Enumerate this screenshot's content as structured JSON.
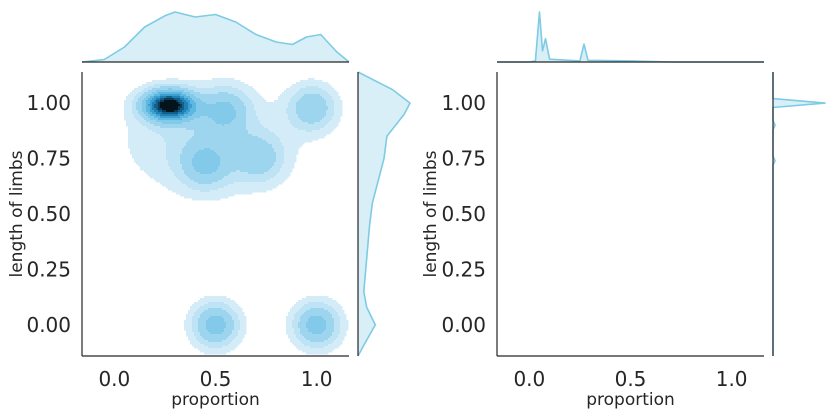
{
  "colors": {
    "kde_levels": [
      "#d3ecf7",
      "#bde3f4",
      "#9dd5ef",
      "#82c9ea",
      "#5db7e0",
      "#3b9fcf",
      "#2280b4",
      "#145f89",
      "#0a3d58",
      "#03141d"
    ],
    "marginal_line": "#7ecbe4",
    "marginal_fill": "#d8eff8",
    "axis": "#262626"
  },
  "chart_data": [
    {
      "type": "jointplot-kde",
      "xlabel": "proportion",
      "ylabel": "length of limbs",
      "x_ticks": [
        0.0,
        0.5,
        1.0
      ],
      "x_tick_labels": [
        "0.0",
        "0.5",
        "1.0"
      ],
      "y_ticks": [
        0.0,
        0.25,
        0.5,
        0.75,
        1.0
      ],
      "y_tick_labels": [
        "0.00",
        "0.25",
        "0.50",
        "0.75",
        "1.00"
      ],
      "xlim": [
        -0.16,
        1.16
      ],
      "ylim": [
        -0.14,
        1.14
      ],
      "kde_peaks": [
        {
          "x": 0.27,
          "y": 0.99,
          "weight": 1.0
        },
        {
          "x": 0.55,
          "y": 0.97,
          "weight": 0.3
        },
        {
          "x": 0.98,
          "y": 0.98,
          "weight": 0.35
        },
        {
          "x": 0.45,
          "y": 0.72,
          "weight": 0.28
        },
        {
          "x": 0.72,
          "y": 0.75,
          "weight": 0.25
        },
        {
          "x": 0.5,
          "y": 0.0,
          "weight": 0.45
        },
        {
          "x": 1.0,
          "y": 0.0,
          "weight": 0.45
        }
      ],
      "marginal_x": [
        [
          -0.16,
          0.0
        ],
        [
          -0.05,
          0.02
        ],
        [
          0.05,
          0.12
        ],
        [
          0.15,
          0.28
        ],
        [
          0.25,
          0.37
        ],
        [
          0.3,
          0.4
        ],
        [
          0.4,
          0.36
        ],
        [
          0.5,
          0.38
        ],
        [
          0.6,
          0.32
        ],
        [
          0.7,
          0.22
        ],
        [
          0.8,
          0.16
        ],
        [
          0.88,
          0.14
        ],
        [
          0.95,
          0.2
        ],
        [
          1.02,
          0.22
        ],
        [
          1.1,
          0.08
        ],
        [
          1.16,
          0.0
        ]
      ],
      "marginal_y": [
        [
          -0.14,
          0.0
        ],
        [
          -0.08,
          0.05
        ],
        [
          0.0,
          0.12
        ],
        [
          0.08,
          0.06
        ],
        [
          0.15,
          0.04
        ],
        [
          0.3,
          0.06
        ],
        [
          0.45,
          0.08
        ],
        [
          0.55,
          0.1
        ],
        [
          0.65,
          0.14
        ],
        [
          0.75,
          0.18
        ],
        [
          0.85,
          0.2
        ],
        [
          0.95,
          0.32
        ],
        [
          1.0,
          0.36
        ],
        [
          1.06,
          0.24
        ],
        [
          1.14,
          0.0
        ]
      ]
    },
    {
      "type": "jointplot-empty",
      "xlabel": "proportion",
      "ylabel": "length of limbs",
      "x_ticks": [
        0.0,
        0.5,
        1.0
      ],
      "x_tick_labels": [
        "0.0",
        "0.5",
        "1.0"
      ],
      "y_ticks": [
        0.0,
        0.25,
        0.5,
        0.75,
        1.0
      ],
      "y_tick_labels": [
        "0.00",
        "0.25",
        "0.50",
        "0.75",
        "1.00"
      ],
      "xlim": [
        -0.16,
        1.16
      ],
      "ylim": [
        -0.14,
        1.14
      ],
      "marginal_x": [
        [
          -0.16,
          0.0
        ],
        [
          0.0,
          0.0
        ],
        [
          0.03,
          0.02
        ],
        [
          0.05,
          0.9
        ],
        [
          0.065,
          0.2
        ],
        [
          0.08,
          0.42
        ],
        [
          0.1,
          0.05
        ],
        [
          0.25,
          0.02
        ],
        [
          0.27,
          0.32
        ],
        [
          0.29,
          0.03
        ],
        [
          0.5,
          0.02
        ],
        [
          0.7,
          0.0
        ],
        [
          1.16,
          0.0
        ]
      ],
      "marginal_y": [
        [
          -0.14,
          0.0
        ],
        [
          0.72,
          0.0
        ],
        [
          0.74,
          0.04
        ],
        [
          0.76,
          0.0
        ],
        [
          0.88,
          0.0
        ],
        [
          0.9,
          0.04
        ],
        [
          0.92,
          0.0
        ],
        [
          0.98,
          0.0
        ],
        [
          1.0,
          1.0
        ],
        [
          1.02,
          0.0
        ],
        [
          1.14,
          0.0
        ]
      ]
    }
  ]
}
